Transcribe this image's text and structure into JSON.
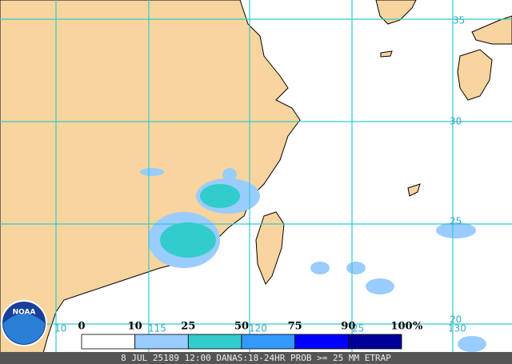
{
  "map": {
    "lat_labels": [
      "35",
      "30",
      "25",
      "20"
    ],
    "lon_labels": [
      "10",
      "115",
      "120",
      "25",
      "130"
    ]
  },
  "legend": {
    "labels": [
      "0",
      "10",
      "25",
      "50",
      "75",
      "90",
      "100"
    ],
    "unit": "%",
    "colors": [
      "#ffffff",
      "#99ccff",
      "#33cccc",
      "#3399ff",
      "#0000ff",
      "#000099"
    ]
  },
  "caption": "8 JUL 25189 12:00 DANAS:18-24HR PROB >= 25 MM ETRAP",
  "logo": "NOAA"
}
